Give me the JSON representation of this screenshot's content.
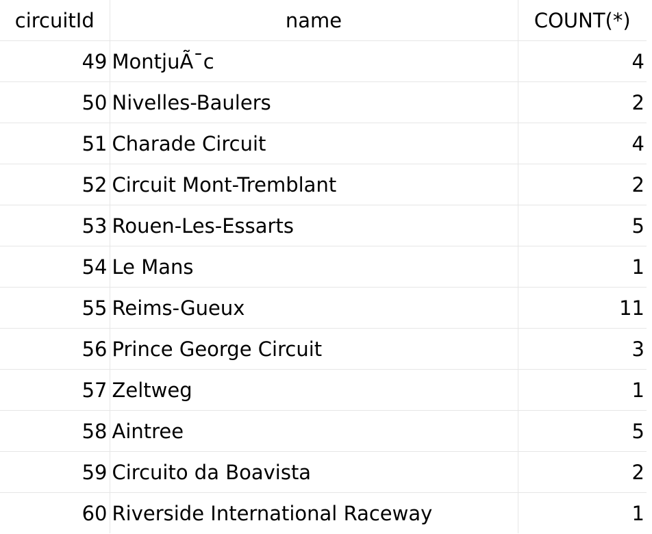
{
  "columns": [
    {
      "label": "circuitId",
      "key": "id"
    },
    {
      "label": "name",
      "key": "name"
    },
    {
      "label": "COUNT(*)",
      "key": "count"
    }
  ],
  "rows": [
    {
      "id": "49",
      "name": "MontjuÃ¯c",
      "count": "4"
    },
    {
      "id": "50",
      "name": "Nivelles-Baulers",
      "count": "2"
    },
    {
      "id": "51",
      "name": "Charade Circuit",
      "count": "4"
    },
    {
      "id": "52",
      "name": "Circuit Mont-Tremblant",
      "count": "2"
    },
    {
      "id": "53",
      "name": "Rouen-Les-Essarts",
      "count": "5"
    },
    {
      "id": "54",
      "name": "Le Mans",
      "count": "1"
    },
    {
      "id": "55",
      "name": "Reims-Gueux",
      "count": "11"
    },
    {
      "id": "56",
      "name": "Prince George Circuit",
      "count": "3"
    },
    {
      "id": "57",
      "name": "Zeltweg",
      "count": "1"
    },
    {
      "id": "58",
      "name": "Aintree",
      "count": "5"
    },
    {
      "id": "59",
      "name": "Circuito da Boavista",
      "count": "2"
    },
    {
      "id": "60",
      "name": "Riverside International Raceway",
      "count": "1"
    }
  ]
}
